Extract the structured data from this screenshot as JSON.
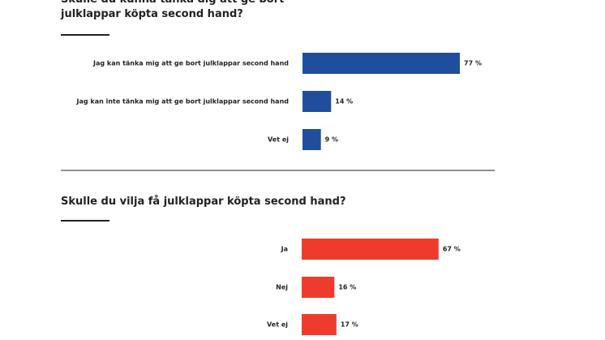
{
  "chart_data": [
    {
      "type": "bar",
      "orientation": "horizontal",
      "title": "Skulle du kunna tänka dig att ge bort julklappar köpta second hand?",
      "categories": [
        "Jag kan tänka mig att ge bort julklappar second hand",
        "Jag kan inte tänka mig att ge bort julklappar second hand",
        "Vet ej"
      ],
      "values": [
        77,
        14,
        9
      ],
      "value_labels": [
        "77 %",
        "14 %",
        "9 %"
      ],
      "color": "#1f4e9c"
    },
    {
      "type": "bar",
      "orientation": "horizontal",
      "title": "Skulle du vilja få julklappar köpta second hand?",
      "categories": [
        "Ja",
        "Nej",
        "Vet ej"
      ],
      "values": [
        67,
        16,
        17
      ],
      "value_labels": [
        "67 %",
        "16 %",
        "17 %"
      ],
      "color": "#ee3b2e"
    }
  ]
}
